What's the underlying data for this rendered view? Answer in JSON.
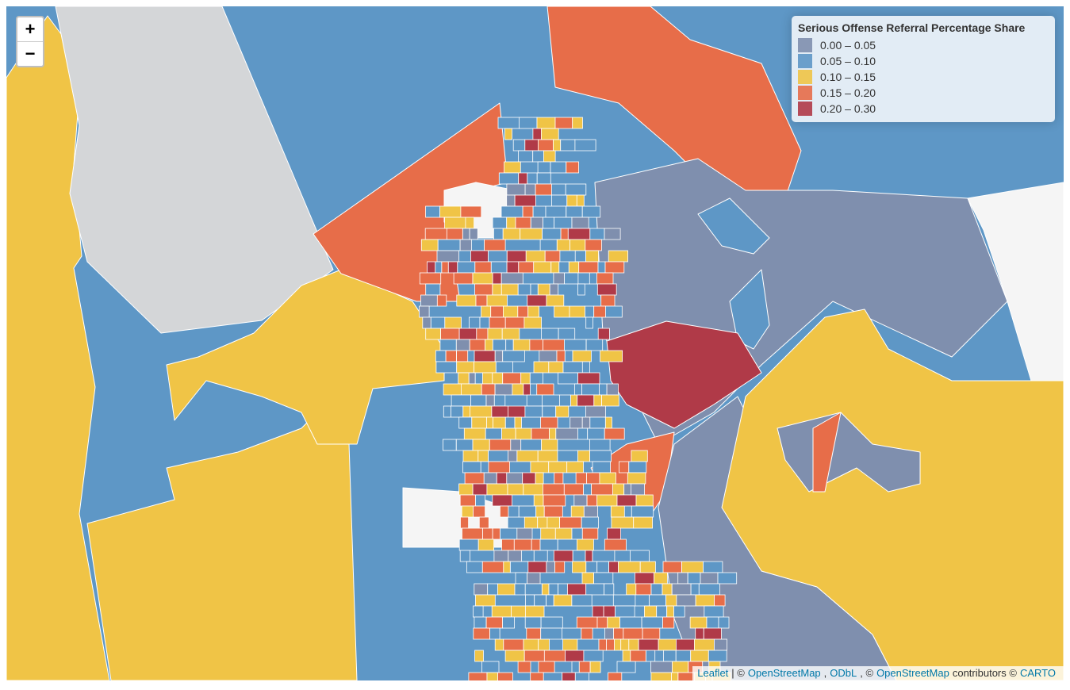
{
  "zoom": {
    "in": "+",
    "out": "−"
  },
  "legend": {
    "title": "Serious Offense Referral Percentage Share",
    "items": [
      {
        "label": "0.00 – 0.05",
        "color": "#7f8fae"
      },
      {
        "label": "0.05 – 0.10",
        "color": "#5e97c6"
      },
      {
        "label": "0.10 – 0.15",
        "color": "#f0c446"
      },
      {
        "label": "0.15 – 0.20",
        "color": "#e76d49"
      },
      {
        "label": "0.20 – 0.30",
        "color": "#b03a48"
      }
    ]
  },
  "attribution": [
    {
      "text": "Leaflet",
      "link": true
    },
    {
      "text": "| ©",
      "link": false
    },
    {
      "text": "OpenStreetMap",
      "link": true
    },
    {
      "text": ",",
      "link": false
    },
    {
      "text": "ODbL",
      "link": true
    },
    {
      "text": ", ©",
      "link": false
    },
    {
      "text": "OpenStreetMap",
      "link": true
    },
    {
      "text": "contributors ©",
      "link": false
    },
    {
      "text": "CARTO",
      "link": true
    }
  ]
}
